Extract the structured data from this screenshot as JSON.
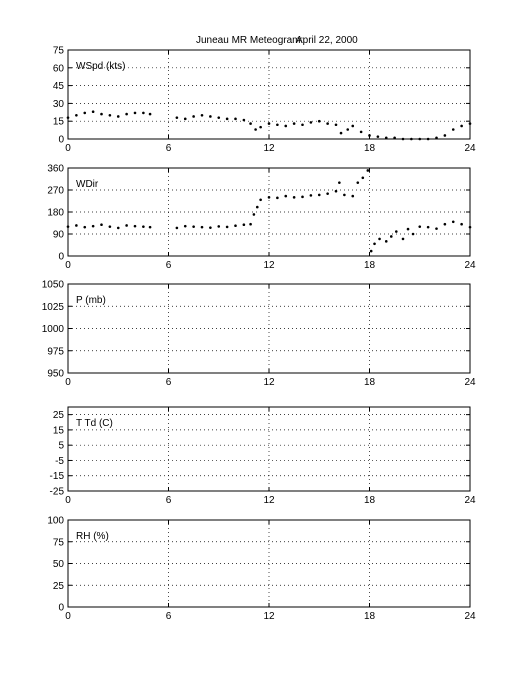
{
  "title": "Juneau MR Meteogram:",
  "date": "April 22, 2000",
  "chart_data": [
    {
      "type": "scatter",
      "label": "WSpd (kts)",
      "xlim": [
        0,
        24
      ],
      "xticks": [
        0,
        6,
        12,
        18,
        24
      ],
      "ylim": [
        0,
        75
      ],
      "yticks": [
        0,
        15,
        30,
        45,
        60,
        75
      ],
      "grid": true,
      "series": [
        {
          "x": [
            0,
            0.5,
            1,
            1.5,
            2,
            2.5,
            3,
            3.5,
            4,
            4.5,
            4.9,
            6.5,
            7,
            7.5,
            8,
            8.5,
            9,
            9.5,
            10,
            10.5,
            10.9,
            11.2,
            11.5,
            12,
            12.5,
            13,
            13.5,
            14,
            14.5,
            15,
            15.5,
            16,
            16.3,
            16.7,
            17,
            17.5,
            18,
            18.5,
            19,
            19.5,
            20,
            20.5,
            21,
            21.5,
            22,
            22.5,
            23,
            23.5,
            24
          ],
          "y": [
            18,
            20,
            22,
            23,
            21,
            20,
            19,
            21,
            22,
            22,
            21,
            18,
            17,
            19,
            20,
            19,
            18,
            17,
            17,
            16,
            13,
            8,
            10,
            13,
            12,
            11,
            13,
            12,
            14,
            15,
            13,
            12,
            5,
            8,
            11,
            6,
            3,
            2,
            1,
            1,
            0,
            0,
            0,
            0,
            1,
            3,
            8,
            11,
            13
          ]
        }
      ]
    },
    {
      "type": "scatter",
      "label": "WDir",
      "xlim": [
        0,
        24
      ],
      "xticks": [
        0,
        6,
        12,
        18,
        24
      ],
      "ylim": [
        0,
        360
      ],
      "yticks": [
        0,
        90,
        180,
        270,
        360
      ],
      "grid": true,
      "series": [
        {
          "x": [
            0,
            0.5,
            1,
            1.5,
            2,
            2.5,
            3,
            3.5,
            4,
            4.5,
            4.9,
            6.5,
            7,
            7.5,
            8,
            8.5,
            9,
            9.5,
            10,
            10.5,
            10.9,
            11.1,
            11.3,
            11.5,
            12,
            12.5,
            13,
            13.5,
            14,
            14.5,
            15,
            15.5,
            16,
            16.2,
            16.5,
            17,
            17.3,
            17.6,
            17.9,
            18.1,
            18.3,
            18.6,
            19,
            19.3,
            19.6,
            20,
            20.3,
            20.6,
            21,
            21.5,
            22,
            22.5,
            23,
            23.5,
            24
          ],
          "y": [
            120,
            125,
            118,
            122,
            128,
            120,
            115,
            125,
            122,
            120,
            118,
            115,
            122,
            120,
            118,
            116,
            121,
            119,
            124,
            128,
            130,
            170,
            200,
            230,
            240,
            238,
            245,
            240,
            242,
            248,
            250,
            255,
            265,
            300,
            250,
            245,
            300,
            320,
            350,
            20,
            50,
            70,
            60,
            80,
            100,
            70,
            110,
            90,
            120,
            118,
            112,
            130,
            140,
            130,
            118
          ]
        }
      ]
    },
    {
      "type": "scatter",
      "label": "P (mb)",
      "xlim": [
        0,
        24
      ],
      "xticks": [
        0,
        6,
        12,
        18,
        24
      ],
      "ylim": [
        950,
        1050
      ],
      "yticks": [
        950,
        975,
        1000,
        1025,
        1050
      ],
      "grid": true,
      "series": []
    },
    {
      "type": "scatter",
      "label": "T Td (C)",
      "xlim": [
        0,
        24
      ],
      "xticks": [
        0,
        6,
        12,
        18,
        24
      ],
      "ylim": [
        -25,
        30
      ],
      "yticks": [
        -25,
        -15,
        -5,
        5,
        15,
        25
      ],
      "grid": true,
      "series": []
    },
    {
      "type": "scatter",
      "label": "RH (%)",
      "xlim": [
        0,
        24
      ],
      "xticks": [
        0,
        6,
        12,
        18,
        24
      ],
      "ylim": [
        0,
        100
      ],
      "yticks": [
        0,
        25,
        50,
        75,
        100
      ],
      "grid": true,
      "series": []
    }
  ]
}
